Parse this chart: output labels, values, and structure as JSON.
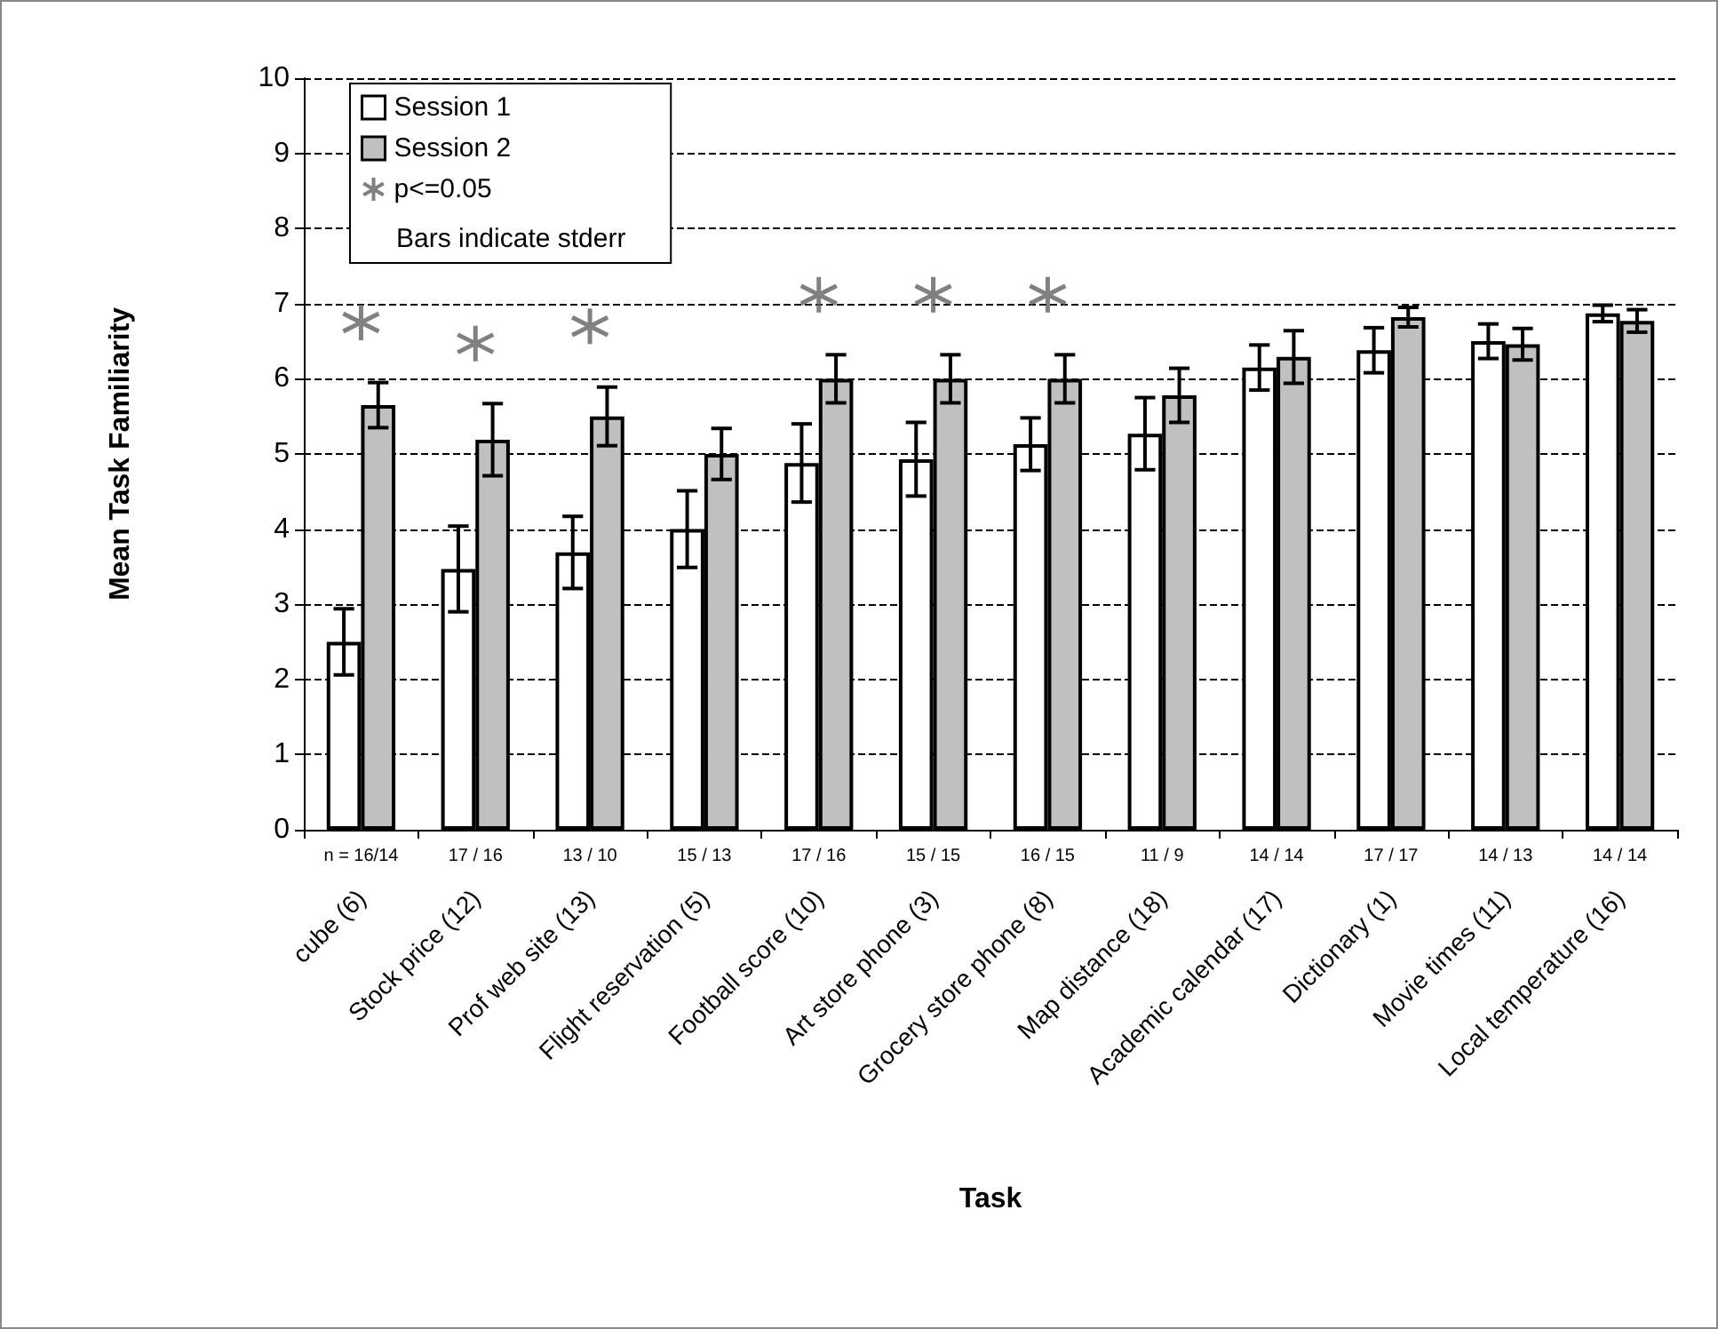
{
  "chart_data": {
    "type": "bar",
    "xlabel": "Task",
    "ylabel": "Mean Task Familiarity",
    "categories": [
      "cube (6)",
      "Stock price (12)",
      "Prof web site (13)",
      "Flight reservation (5)",
      "Football score (10)",
      "Art store phone (3)",
      "Grocery store phone (8)",
      "Map distance (18)",
      "Academic calendar (17)",
      "Dictionary (1)",
      "Movie times (11)",
      "Local temperature (16)"
    ],
    "series": [
      {
        "name": "Session 1",
        "color": "#ffffff",
        "values": [
          2.5,
          3.47,
          3.69,
          4.0,
          4.88,
          4.93,
          5.13,
          5.27,
          6.15,
          6.38,
          6.5,
          6.87
        ],
        "errors": [
          0.44,
          0.57,
          0.48,
          0.51,
          0.52,
          0.49,
          0.35,
          0.48,
          0.3,
          0.3,
          0.23,
          0.11
        ]
      },
      {
        "name": "Session 2",
        "color": "#c0c0c0",
        "values": [
          5.65,
          5.19,
          5.5,
          5.0,
          6.0,
          6.0,
          6.0,
          5.78,
          6.29,
          6.82,
          6.46,
          6.77
        ],
        "errors": [
          0.3,
          0.48,
          0.39,
          0.34,
          0.32,
          0.32,
          0.32,
          0.36,
          0.35,
          0.13,
          0.21,
          0.15
        ]
      },
      {
        "name": "p<=0.05",
        "type": "scatter",
        "marker": "cross",
        "color": "#606060",
        "x": [
          "cube (6)",
          "Stock price (12)",
          "Prof web site (13)",
          "Football score (10)",
          "Art store phone (3)",
          "Grocery store phone (8)"
        ],
        "values": [
          6.75,
          6.47,
          6.7,
          7.12,
          7.12,
          7.12
        ]
      }
    ],
    "ylim": [
      0,
      10
    ],
    "yticks": [
      0,
      1,
      2,
      3,
      4,
      5,
      6,
      7,
      8,
      9,
      10
    ],
    "grid": "y",
    "legend": "top left",
    "annotations": [
      "Bars indicate stderr",
      "n = 16/14",
      "17 / 16",
      "13 / 10",
      "15 / 13",
      "17 / 16",
      "15 / 15",
      "16 / 15",
      "11 / 9",
      "14 / 14",
      "17 / 17",
      "14 / 13",
      "14 / 14"
    ]
  }
}
